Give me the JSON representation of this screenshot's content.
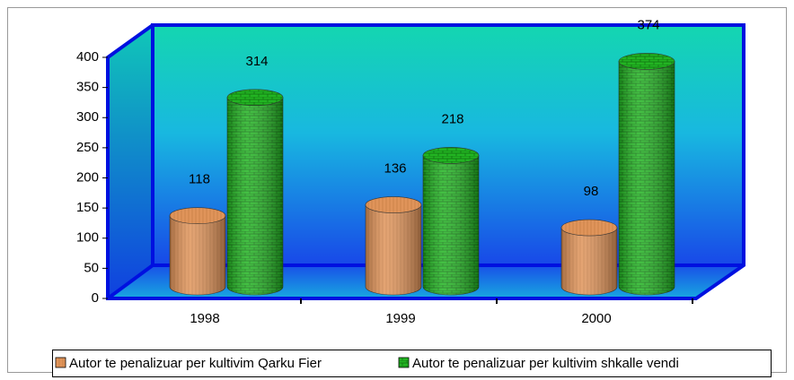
{
  "chart_data": {
    "type": "bar",
    "categories": [
      "1998",
      "1999",
      "2000"
    ],
    "series": [
      {
        "name": "Autor te penalizuar per kultivim Qarku Fier",
        "color": "#e0945a",
        "values": [
          118,
          136,
          98
        ]
      },
      {
        "name": "Autor te penalizuar per kultivim shkalle vendi",
        "color": "#22b422",
        "values": [
          314,
          218,
          374
        ]
      }
    ],
    "ylim": [
      0,
      400
    ],
    "yticks": [
      0,
      50,
      100,
      150,
      200,
      250,
      300,
      350,
      400
    ]
  }
}
